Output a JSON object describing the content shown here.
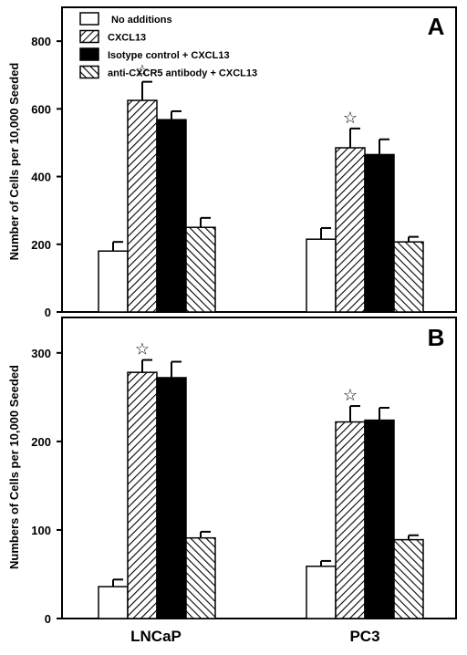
{
  "chart_data": [
    {
      "type": "bar",
      "panel_label": "A",
      "ylabel": "Number of Cells per 10,000  Seeded",
      "xlabel": "",
      "ylim": [
        0,
        900
      ],
      "yticks": [
        0,
        200,
        400,
        600,
        800
      ],
      "categories": [
        "LNCaP",
        "PC3"
      ],
      "series": [
        {
          "name": "No additions",
          "pattern": "white",
          "values": [
            180,
            215
          ],
          "errors": [
            27,
            33
          ]
        },
        {
          "name": "CXCL13",
          "pattern": "hatch-right",
          "values": [
            625,
            485
          ],
          "errors": [
            55,
            57
          ]
        },
        {
          "name": "Isotype control + CXCL13",
          "pattern": "black",
          "values": [
            568,
            465
          ],
          "errors": [
            25,
            45
          ]
        },
        {
          "name": "anti-CXCR5 antibody + CXCL13",
          "pattern": "hatch-left",
          "values": [
            250,
            207
          ],
          "errors": [
            28,
            15
          ]
        }
      ],
      "significance_marker": "☆",
      "significant": [
        [
          false,
          true,
          false,
          false
        ],
        [
          false,
          true,
          false,
          false
        ]
      ],
      "legend_position": "top-left"
    },
    {
      "type": "bar",
      "panel_label": "B",
      "ylabel": "Numbers of Cells per 10,000 Seeded",
      "xlabel": "",
      "ylim": [
        0,
        340
      ],
      "yticks": [
        0,
        100,
        200,
        300
      ],
      "categories": [
        "LNCaP",
        "PC3"
      ],
      "series": [
        {
          "name": "No additions",
          "pattern": "white",
          "values": [
            36,
            59
          ],
          "errors": [
            8,
            6
          ]
        },
        {
          "name": "CXCL13",
          "pattern": "hatch-right",
          "values": [
            278,
            222
          ],
          "errors": [
            14,
            18
          ]
        },
        {
          "name": "Isotype control + CXCL13",
          "pattern": "black",
          "values": [
            272,
            224
          ],
          "errors": [
            18,
            14
          ]
        },
        {
          "name": "anti-CXCR5 antibody + CXCL13",
          "pattern": "hatch-left",
          "values": [
            91,
            89
          ],
          "errors": [
            7,
            5
          ]
        }
      ],
      "significance_marker": "☆",
      "significant": [
        [
          false,
          true,
          false,
          false
        ],
        [
          false,
          true,
          false,
          false
        ]
      ]
    }
  ]
}
